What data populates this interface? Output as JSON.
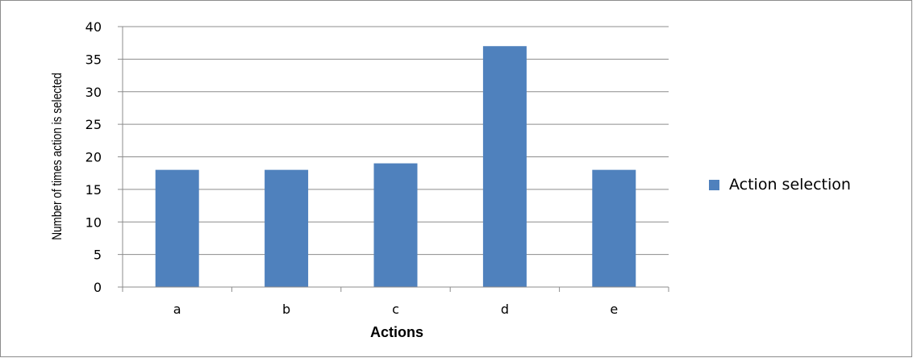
{
  "chart_data": {
    "type": "bar",
    "categories": [
      "a",
      "b",
      "c",
      "d",
      "e"
    ],
    "series": [
      {
        "name": "Action selection",
        "values": [
          18,
          18,
          19,
          37,
          18
        ],
        "color": "#4f81bd"
      }
    ],
    "title": "",
    "xlabel": "Actions",
    "ylabel": "Number of times action is selected",
    "ylim": [
      0,
      40
    ],
    "yticks": [
      0,
      5,
      10,
      15,
      20,
      25,
      30,
      35,
      40
    ],
    "grid": true,
    "legend_position": "right"
  },
  "colors": {
    "gridline": "#8c8c8c",
    "axis": "#8c8c8c",
    "frame": "#8c8c8c"
  }
}
